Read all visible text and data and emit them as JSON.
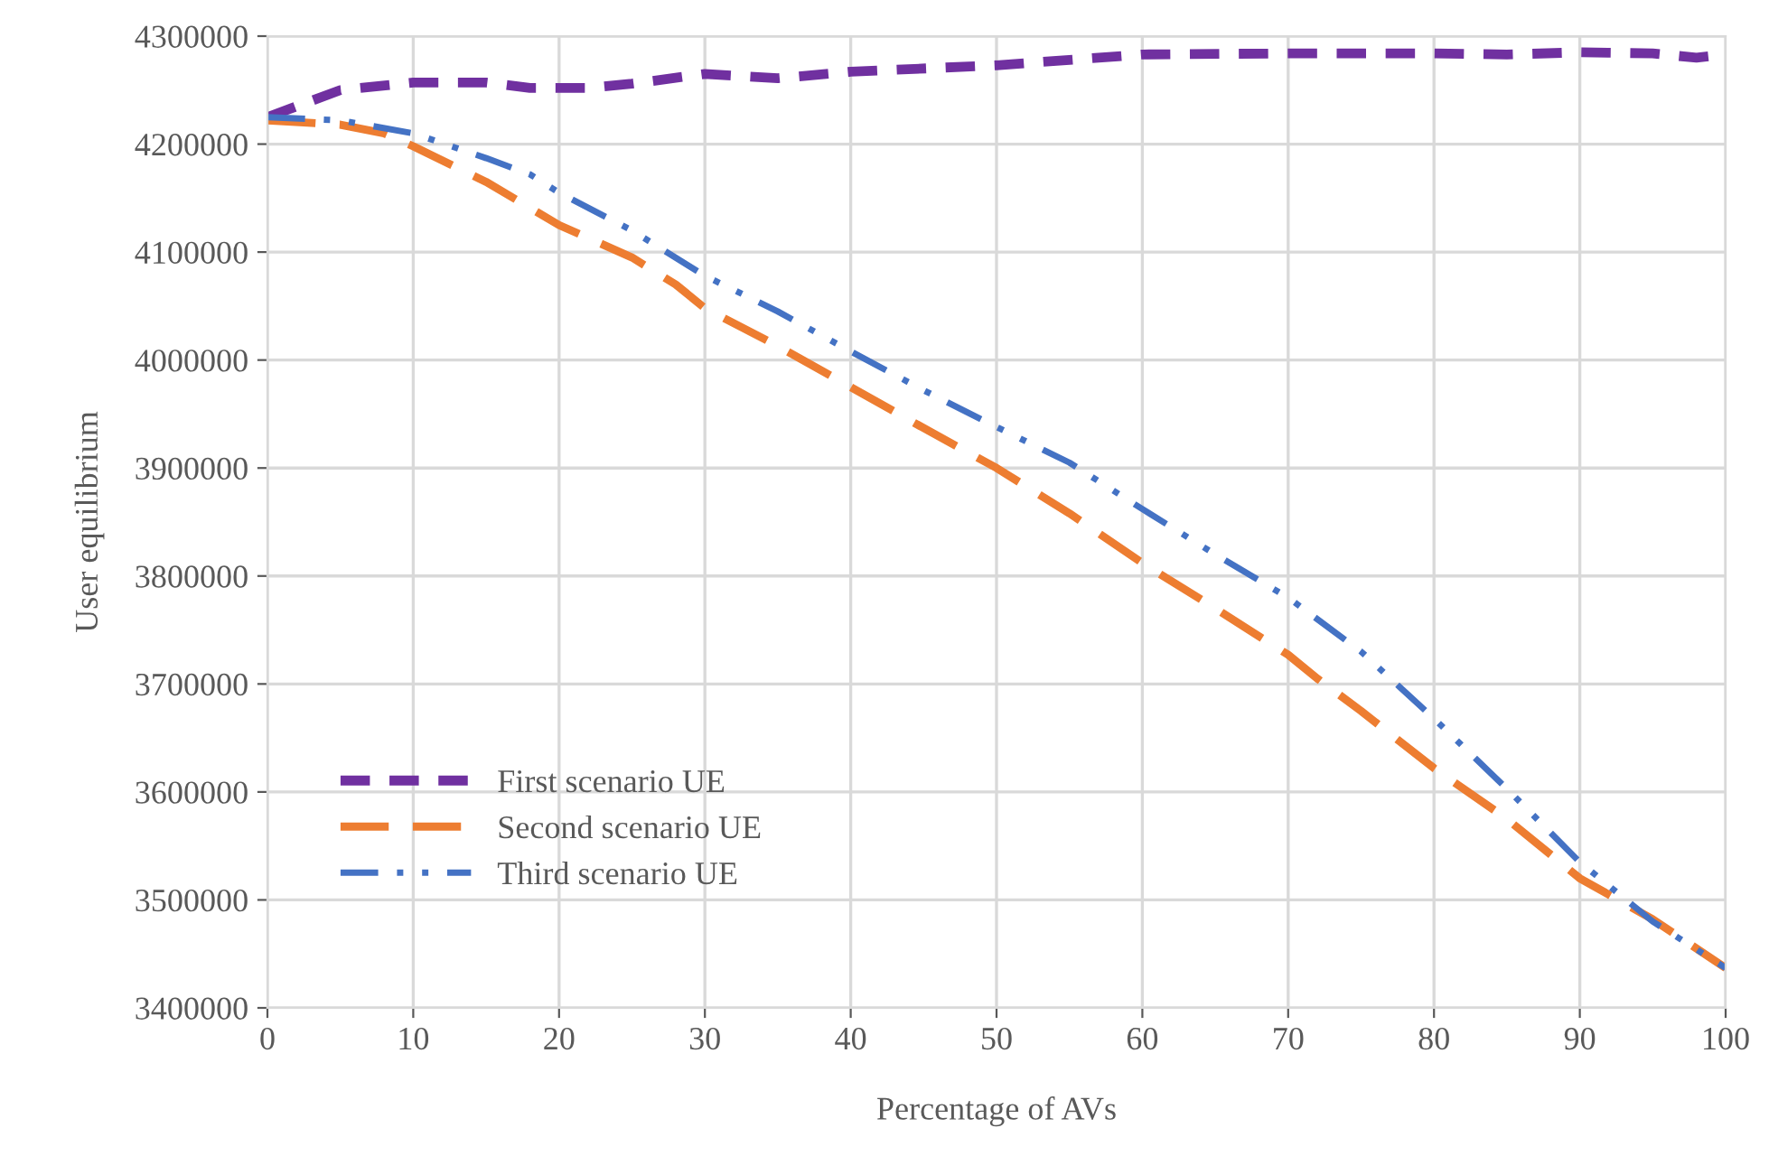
{
  "chart_data": {
    "type": "line",
    "xlabel": "Percentage of AVs",
    "ylabel": "User equilibrium",
    "xlim": [
      0,
      100
    ],
    "xticks": [
      0,
      10,
      20,
      30,
      40,
      50,
      60,
      70,
      80,
      90,
      100
    ],
    "ylim": [
      3400000,
      4300000
    ],
    "yticks": [
      3400000,
      3500000,
      3600000,
      3700000,
      3800000,
      3900000,
      4000000,
      4100000,
      4200000,
      4300000
    ],
    "grid": true,
    "legend": "bottom left",
    "marker": "none",
    "series": [
      {
        "name": "First scenario UE",
        "color": "#7030a0",
        "line_style": "dashed",
        "x": [
          0,
          5,
          10,
          15,
          18,
          22,
          25,
          30,
          35,
          40,
          50,
          60,
          70,
          80,
          85,
          90,
          95,
          98,
          100
        ],
        "values": [
          4225000,
          4250000,
          4257000,
          4257000,
          4252000,
          4252000,
          4256000,
          4265000,
          4261000,
          4267000,
          4273000,
          4283000,
          4284000,
          4284000,
          4283000,
          4285000,
          4284000,
          4280000,
          4283000
        ]
      },
      {
        "name": "Second scenario UE",
        "color": "#ed7d31",
        "line_style": "longdash",
        "x": [
          0,
          5,
          8,
          10,
          15,
          20,
          25,
          28,
          30,
          35,
          40,
          45,
          50,
          55,
          60,
          65,
          70,
          72,
          75,
          80,
          85,
          90,
          95,
          100
        ],
        "values": [
          4222000,
          4218000,
          4210000,
          4198000,
          4165000,
          4125000,
          4095000,
          4070000,
          4048000,
          4013000,
          3975000,
          3937000,
          3900000,
          3858000,
          3812000,
          3770000,
          3727000,
          3705000,
          3675000,
          3622000,
          3575000,
          3520000,
          3482000,
          3437000
        ]
      },
      {
        "name": "Third scenario UE",
        "color": "#4472c4",
        "line_style": "dashdotdot",
        "x": [
          0,
          5,
          10,
          15,
          18,
          20,
          25,
          30,
          35,
          40,
          45,
          50,
          55,
          60,
          65,
          70,
          75,
          80,
          85,
          90,
          95,
          100
        ],
        "values": [
          4225000,
          4222000,
          4210000,
          4187000,
          4172000,
          4155000,
          4120000,
          4078000,
          4045000,
          4008000,
          3972000,
          3938000,
          3905000,
          3862000,
          3820000,
          3780000,
          3730000,
          3668000,
          3603000,
          3535000,
          3480000,
          3437000
        ]
      }
    ]
  }
}
